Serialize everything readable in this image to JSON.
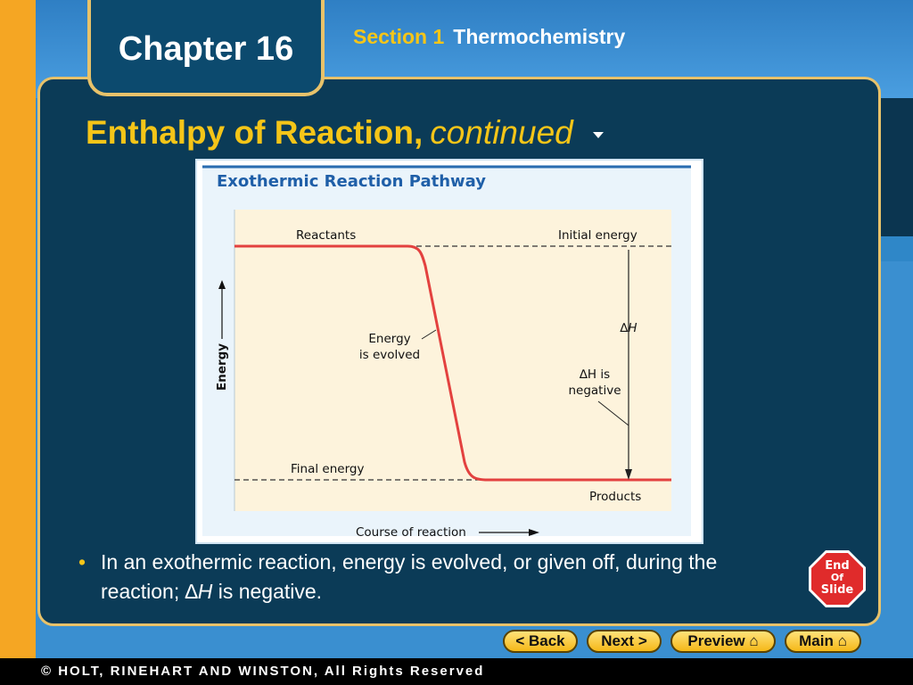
{
  "header": {
    "chapter": "Chapter 16",
    "section_label": "Section 1",
    "section_topic": "Thermochemistry"
  },
  "slide": {
    "title": "Enthalpy of Reaction,",
    "title_continued": "continued",
    "bullet_prefix": "In an exothermic reaction, energy is evolved, or given off, during the reaction; ",
    "bullet_delta": "∆",
    "bullet_h": "H",
    "bullet_suffix": " is negative."
  },
  "figure": {
    "title": "Exothermic Reaction Pathway",
    "reactants": "Reactants",
    "initial_energy": "Initial energy",
    "energy_evolved_line1": "Energy",
    "energy_evolved_line2": "is evolved",
    "delta_h": "∆H",
    "delta_h_negative_line1": "∆H is",
    "delta_h_negative_line2": "negative",
    "final_energy": "Final energy",
    "products": "Products",
    "y_axis": "Energy",
    "x_axis": "Course of reaction"
  },
  "end_slide": {
    "line1": "End",
    "line2": "Of",
    "line3": "Slide"
  },
  "nav": {
    "back": "< Back",
    "next": "Next >",
    "preview": "Preview",
    "main": "Main"
  },
  "footer": {
    "copyright": "© HOLT, RINEHART AND WINSTON, All Rights Reserved"
  },
  "colors": {
    "accent_yellow": "#f5c518",
    "panel": "#0b3b57",
    "curve_red": "#e3413f",
    "plot_bg": "#fdf3dc",
    "figure_title_blue": "#1f5fa8"
  }
}
